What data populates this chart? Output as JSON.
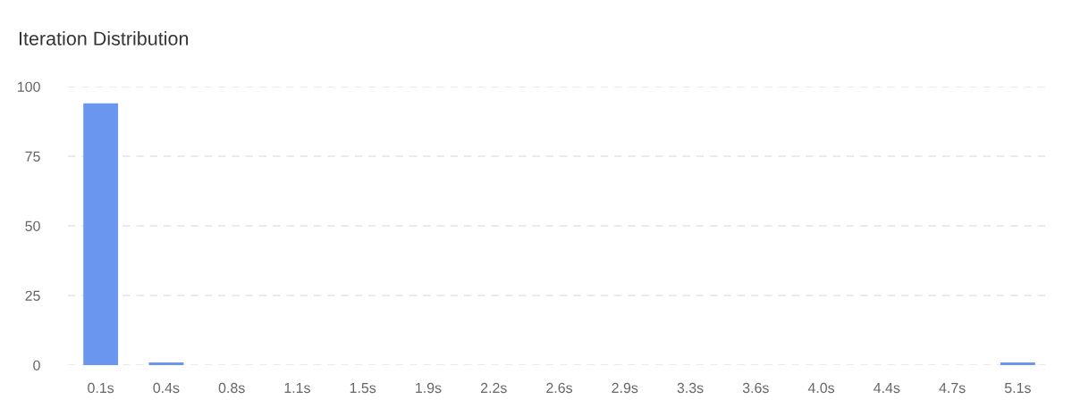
{
  "chart_data": {
    "type": "bar",
    "title": "Iteration Distribution",
    "categories": [
      "0.1s",
      "0.4s",
      "0.8s",
      "1.1s",
      "1.5s",
      "1.9s",
      "2.2s",
      "2.6s",
      "2.9s",
      "3.3s",
      "3.6s",
      "4.0s",
      "4.4s",
      "4.7s",
      "5.1s"
    ],
    "values": [
      94,
      1,
      0,
      0,
      0,
      0,
      0,
      0,
      0,
      0,
      0,
      0,
      0,
      0,
      1
    ],
    "color": "#6b96f0",
    "ylim": [
      0,
      100
    ],
    "yticks": [
      0,
      25,
      50,
      75,
      100
    ],
    "grid": "y",
    "legend": false
  }
}
